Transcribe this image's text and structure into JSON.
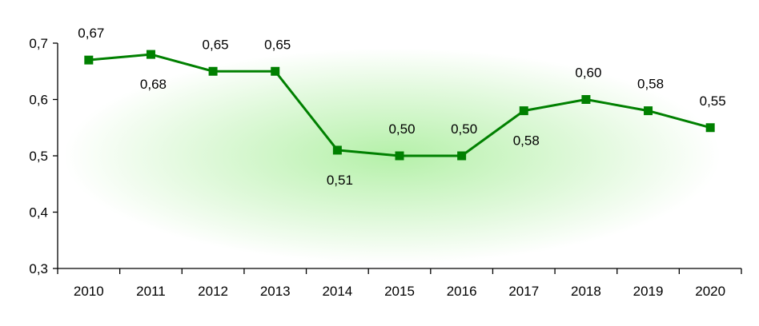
{
  "chart_data": {
    "type": "line",
    "categories": [
      "2010",
      "2011",
      "2012",
      "2013",
      "2014",
      "2015",
      "2016",
      "2017",
      "2018",
      "2019",
      "2020"
    ],
    "series": [
      {
        "values": [
          0.67,
          0.68,
          0.65,
          0.65,
          0.51,
          0.5,
          0.5,
          0.58,
          0.6,
          0.58,
          0.55
        ],
        "labels": [
          "0,67",
          "0,68",
          "0,65",
          "0,65",
          "0,51",
          "0,50",
          "0,50",
          "0,58",
          "0,60",
          "0,58",
          "0,55"
        ],
        "label_position": [
          "above",
          "below",
          "above",
          "above",
          "below",
          "above",
          "above",
          "below",
          "above",
          "above",
          "above"
        ],
        "color": "#008000",
        "marker": "square"
      }
    ],
    "ylim": [
      0.3,
      0.7
    ],
    "yticks": [
      0.3,
      0.4,
      0.5,
      0.6,
      0.7
    ],
    "ytick_labels": [
      "0,3",
      "0,4",
      "0,5",
      "0,6",
      "0,7"
    ],
    "grid": false,
    "legend": "none",
    "title": "",
    "xlabel": "",
    "ylabel": "",
    "background_glow_color": "#a8ee9a"
  }
}
